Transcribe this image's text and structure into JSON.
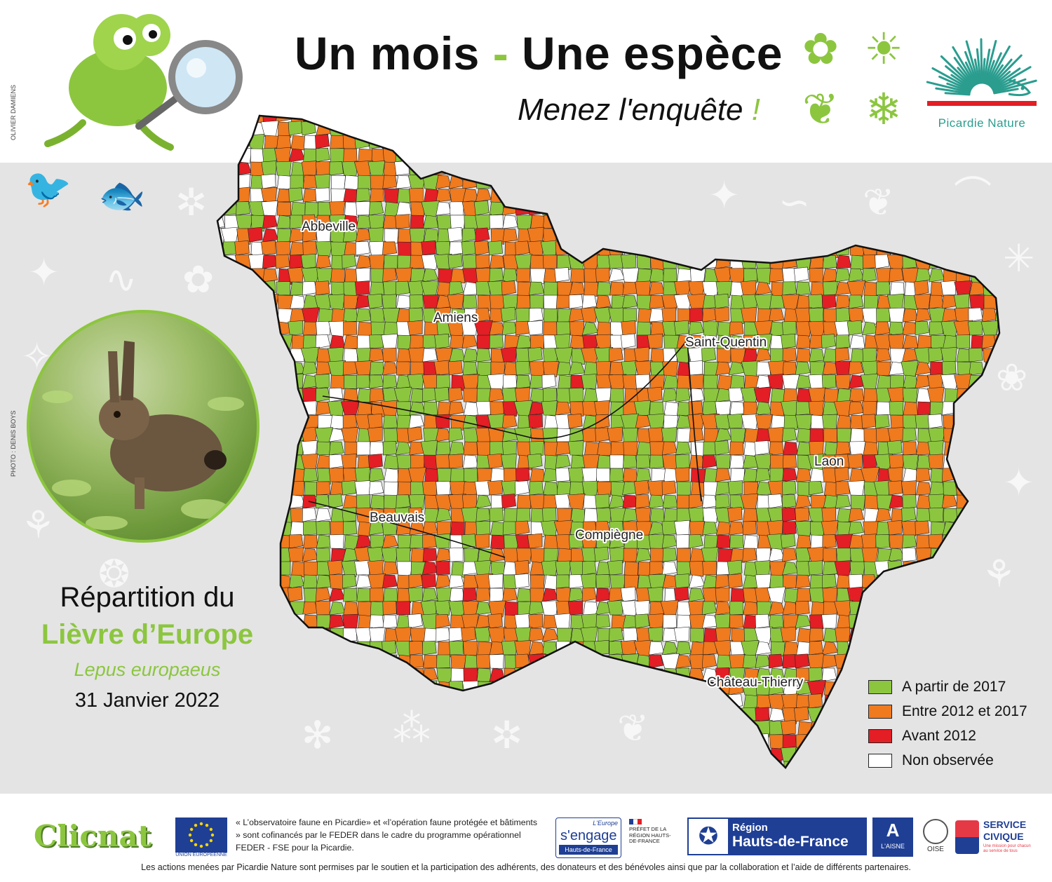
{
  "header": {
    "title_part1": "Un mois",
    "title_dash": "-",
    "title_part2": "Une espèce",
    "subtitle": "Menez l'enquête",
    "subtitle_mark": "!"
  },
  "credits": {
    "illustration": "OLIVIER DAMIENS",
    "photo": "PHOTO : DENIS BOYS"
  },
  "organisation": {
    "name": "Picardie Nature"
  },
  "species": {
    "line1": "Répartition du",
    "common_name": "Lièvre d’Europe",
    "latin_name": "Lepus europaeus",
    "date": "31 Janvier 2022"
  },
  "map": {
    "cities": [
      "Abbeville",
      "Amiens",
      "Saint-Quentin",
      "Laon",
      "Beauvais",
      "Compiègne",
      "Château-Thierry"
    ]
  },
  "legend": {
    "items": [
      {
        "label": "A partir de 2017",
        "color": "#8cc63f"
      },
      {
        "label": "Entre 2012 et 2017",
        "color": "#f07a1e"
      },
      {
        "label": "Avant 2012",
        "color": "#e31e24"
      },
      {
        "label": "Non observée",
        "color": "#ffffff"
      }
    ]
  },
  "footer": {
    "clicnat": "Clicnat",
    "eu_caption": "UNION EUROPÉENNE",
    "funding_text": "« L’observatoire faune en Picardie» et «l’opération faune protégée et bâtiments » sont cofinancés par le FEDER dans le cadre du programme opérationnel FEDER - FSE pour la Picardie.",
    "europe_top": "L'Europe",
    "europe_mid": "s'engage",
    "europe_bottom": "Hauts-de-France",
    "prefet": "PRÉFET DE LA RÉGION HAUTS-DE-FRANCE",
    "region_line1": "Région",
    "region_line2": "Hauts-de-France",
    "aisne": "L'AISNE",
    "oise": "OISE",
    "civique_line1": "SERVICE",
    "civique_line2": "CIVIQUE",
    "civique_tagline": "Une mission pour chacun au service de tous",
    "note": "Les actions menées par Picardie Nature sont permises par le soutien et la participation des adhérents, des donateurs et des bénévoles ainsi que par la collaboration et l’aide de différents partenaires."
  }
}
